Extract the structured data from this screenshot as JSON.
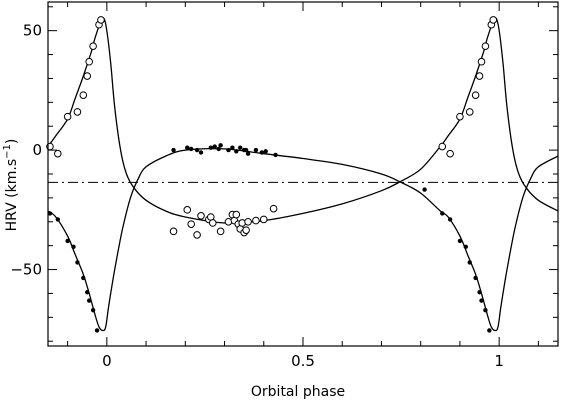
{
  "chart_data": {
    "type": "scatter",
    "xlabel": "Orbital phase",
    "ylabel": "HRV (km.s",
    "ylabel_sup": "−1",
    "ylabel_close": ")",
    "xlim": [
      -0.15,
      1.15
    ],
    "ylim": [
      -82,
      62
    ],
    "x_ticks": [
      0,
      0.5,
      1
    ],
    "x_tick_labels": [
      "0",
      "0.5",
      "1"
    ],
    "y_ticks": [
      50,
      0,
      -50
    ],
    "y_tick_labels": [
      "50",
      "0",
      "−50"
    ],
    "systemic_velocity": -13.5,
    "grid": false,
    "legend": "none",
    "series": [
      {
        "marker": "open-circle",
        "points": [
          [
            -0.145,
            1.5
          ],
          [
            -0.125,
            -1.5
          ],
          [
            -0.1,
            14
          ],
          [
            -0.075,
            16
          ],
          [
            -0.06,
            23
          ],
          [
            -0.05,
            31
          ],
          [
            -0.045,
            37
          ],
          [
            -0.035,
            43.5
          ],
          [
            -0.02,
            52.5
          ],
          [
            -0.015,
            54.5
          ],
          [
            0.17,
            -34
          ],
          [
            0.205,
            -25
          ],
          [
            0.215,
            -31
          ],
          [
            0.23,
            -35.5
          ],
          [
            0.24,
            -27.5
          ],
          [
            0.26,
            -29
          ],
          [
            0.265,
            -28
          ],
          [
            0.27,
            -30.5
          ],
          [
            0.29,
            -34
          ],
          [
            0.31,
            -30
          ],
          [
            0.32,
            -27
          ],
          [
            0.325,
            -29.5
          ],
          [
            0.33,
            -27
          ],
          [
            0.335,
            -31
          ],
          [
            0.34,
            -33
          ],
          [
            0.345,
            -30.5
          ],
          [
            0.35,
            -34.5
          ],
          [
            0.355,
            -33.5
          ],
          [
            0.36,
            -30
          ],
          [
            0.38,
            -29.5
          ],
          [
            0.4,
            -29
          ],
          [
            0.425,
            -24.5
          ],
          [
            0.855,
            1.5
          ],
          [
            0.875,
            -1.5
          ],
          [
            0.9,
            14
          ],
          [
            0.925,
            16
          ],
          [
            0.94,
            23
          ],
          [
            0.95,
            31
          ],
          [
            0.955,
            37
          ],
          [
            0.965,
            43.5
          ],
          [
            0.98,
            52.5
          ],
          [
            0.985,
            54.5
          ]
        ]
      },
      {
        "marker": "filled-circle",
        "points": [
          [
            -0.145,
            -26.5
          ],
          [
            -0.125,
            -29
          ],
          [
            -0.1,
            -38
          ],
          [
            -0.085,
            -40.5
          ],
          [
            -0.075,
            -47
          ],
          [
            -0.06,
            -53.5
          ],
          [
            -0.05,
            -59.5
          ],
          [
            -0.045,
            -63
          ],
          [
            -0.035,
            -67
          ],
          [
            -0.025,
            -75.5
          ],
          [
            0.17,
            0
          ],
          [
            0.205,
            1
          ],
          [
            0.215,
            0.5
          ],
          [
            0.23,
            0
          ],
          [
            0.24,
            -1
          ],
          [
            0.265,
            1
          ],
          [
            0.275,
            1.5
          ],
          [
            0.285,
            0.5
          ],
          [
            0.29,
            2
          ],
          [
            0.31,
            0
          ],
          [
            0.32,
            1
          ],
          [
            0.33,
            -0.5
          ],
          [
            0.34,
            1
          ],
          [
            0.35,
            0
          ],
          [
            0.355,
            0
          ],
          [
            0.36,
            -1.5
          ],
          [
            0.38,
            0
          ],
          [
            0.395,
            -1
          ],
          [
            0.405,
            -0.5
          ],
          [
            0.43,
            -2
          ],
          [
            0.81,
            -16.5
          ],
          [
            0.855,
            -26.5
          ],
          [
            0.875,
            -29
          ],
          [
            0.9,
            -38
          ],
          [
            0.915,
            -40.5
          ],
          [
            0.925,
            -47
          ],
          [
            0.94,
            -53.5
          ],
          [
            0.95,
            -59.5
          ],
          [
            0.955,
            -63
          ],
          [
            0.965,
            -67
          ],
          [
            0.975,
            -75.5
          ]
        ]
      }
    ],
    "curves": [
      {
        "points": [
          [
            -0.15,
            1.5
          ],
          [
            -0.13,
            6
          ],
          [
            -0.1,
            13
          ],
          [
            -0.08,
            22
          ],
          [
            -0.06,
            31
          ],
          [
            -0.04,
            41
          ],
          [
            -0.03,
            47
          ],
          [
            -0.015,
            54
          ],
          [
            -0.007,
            55
          ],
          [
            0.0,
            50
          ],
          [
            0.01,
            36
          ],
          [
            0.02,
            18
          ],
          [
            0.035,
            0
          ],
          [
            0.05,
            -10
          ],
          [
            0.07,
            -16
          ],
          [
            0.1,
            -21
          ],
          [
            0.15,
            -25.5
          ],
          [
            0.2,
            -28
          ],
          [
            0.3,
            -30.5
          ],
          [
            0.4,
            -29.5
          ],
          [
            0.5,
            -26.5
          ],
          [
            0.6,
            -22.5
          ],
          [
            0.7,
            -17
          ],
          [
            0.75,
            -13
          ],
          [
            0.8,
            -8
          ],
          [
            0.85,
            1.5
          ],
          [
            0.87,
            6
          ],
          [
            0.9,
            13
          ],
          [
            0.92,
            22
          ],
          [
            0.94,
            31
          ],
          [
            0.96,
            41
          ],
          [
            0.97,
            47
          ],
          [
            0.985,
            54
          ],
          [
            0.993,
            55
          ],
          [
            1.0,
            50
          ],
          [
            1.01,
            36
          ],
          [
            1.02,
            18
          ],
          [
            1.035,
            0
          ],
          [
            1.05,
            -10
          ],
          [
            1.07,
            -16
          ],
          [
            1.1,
            -21
          ],
          [
            1.15,
            -25.5
          ]
        ]
      },
      {
        "points": [
          [
            -0.15,
            -25.5
          ],
          [
            -0.13,
            -28
          ],
          [
            -0.1,
            -36
          ],
          [
            -0.08,
            -44
          ],
          [
            -0.06,
            -52
          ],
          [
            -0.045,
            -60
          ],
          [
            -0.03,
            -69
          ],
          [
            -0.02,
            -74
          ],
          [
            -0.01,
            -75.5
          ],
          [
            -0.003,
            -74
          ],
          [
            0.005,
            -65
          ],
          [
            0.02,
            -50
          ],
          [
            0.04,
            -33
          ],
          [
            0.06,
            -20
          ],
          [
            0.08,
            -12
          ],
          [
            0.1,
            -7
          ],
          [
            0.15,
            -2.5
          ],
          [
            0.2,
            0
          ],
          [
            0.3,
            0.5
          ],
          [
            0.4,
            -1.5
          ],
          [
            0.5,
            -3.5
          ],
          [
            0.6,
            -6
          ],
          [
            0.7,
            -10
          ],
          [
            0.75,
            -13.5
          ],
          [
            0.8,
            -18
          ],
          [
            0.85,
            -25.5
          ],
          [
            0.87,
            -28
          ],
          [
            0.9,
            -36
          ],
          [
            0.92,
            -44
          ],
          [
            0.94,
            -52
          ],
          [
            0.955,
            -60
          ],
          [
            0.97,
            -69
          ],
          [
            0.98,
            -74
          ],
          [
            0.99,
            -75.5
          ],
          [
            0.997,
            -74
          ],
          [
            1.005,
            -65
          ],
          [
            1.02,
            -50
          ],
          [
            1.04,
            -33
          ],
          [
            1.06,
            -20
          ],
          [
            1.08,
            -12
          ],
          [
            1.1,
            -7
          ],
          [
            1.15,
            -2.5
          ]
        ]
      }
    ]
  }
}
